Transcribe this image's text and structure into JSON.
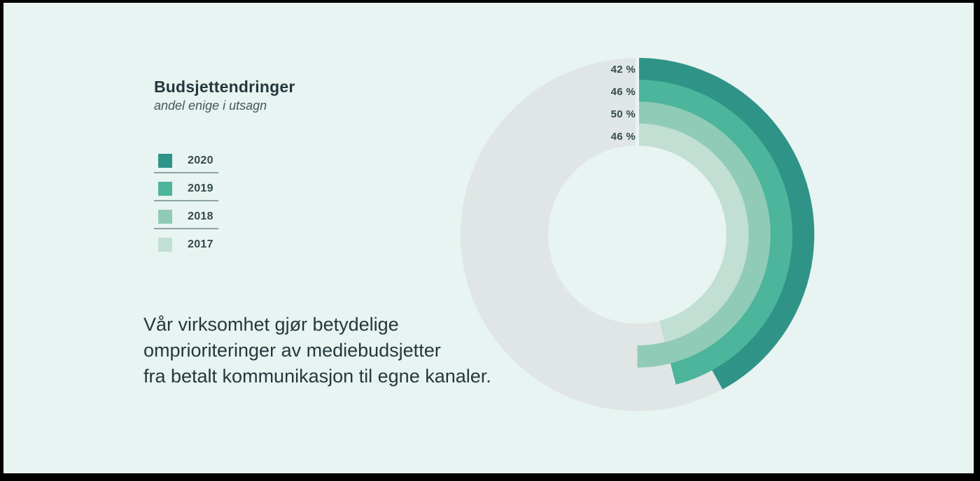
{
  "colors": {
    "frame": "#000000",
    "bg": "#e8f4f1",
    "track": "#dfe6e5",
    "title": "#24383e",
    "subtitle": "#42585d",
    "body": "#24383d",
    "label": "#35494d",
    "legend-line": "#8ca1a2"
  },
  "header": {
    "title": "Budsjettendringer",
    "subtitle": "andel enige i utsagn"
  },
  "annotation": {
    "lines": [
      "Vår virksomhet gjør betydelige",
      "omprioriteringer av mediebudsjetter",
      "fra betalt kommunikasjon til egne kanaler."
    ]
  },
  "chart_data": {
    "type": "radial-bar",
    "title": "Budsjettendringer",
    "subtitle": "andel enige i utsagn",
    "unit": "%",
    "max": 100,
    "start_angle_deg": 0,
    "direction": "clockwise",
    "track_color": "#dfe6e5",
    "legend_position": "left",
    "series": [
      {
        "name": "2020",
        "value": 42,
        "label": "42 %",
        "color": "#2f9487"
      },
      {
        "name": "2019",
        "value": 46,
        "label": "46 %",
        "color": "#4cb59b"
      },
      {
        "name": "2018",
        "value": 50,
        "label": "50 %",
        "color": "#90cbb7"
      },
      {
        "name": "2017",
        "value": 46,
        "label": "46 %",
        "color": "#c1dfd2"
      }
    ]
  }
}
